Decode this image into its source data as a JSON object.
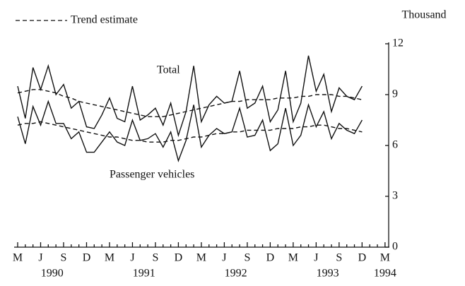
{
  "chart_data": {
    "type": "line",
    "unit_label": "Thousand",
    "categories": [
      "M",
      null,
      null,
      "J",
      null,
      null,
      "S",
      null,
      null,
      "D",
      null,
      null,
      "M",
      null,
      null,
      "J",
      null,
      null,
      "S",
      null,
      null,
      "D",
      null,
      null,
      "M",
      null,
      null,
      "J",
      null,
      null,
      "S",
      null,
      null,
      "D",
      null,
      null,
      "M",
      null,
      null,
      "J",
      null,
      null,
      "S",
      null,
      null,
      "D",
      null,
      null,
      "M"
    ],
    "years": [
      "1990",
      "1991",
      "1992",
      "1993",
      "1994"
    ],
    "series": [
      {
        "name": "Total",
        "color": "#111111",
        "dashed": false,
        "values": [
          9.5,
          7.6,
          10.6,
          9.3,
          10.7,
          9.0,
          9.6,
          8.2,
          8.6,
          7.1,
          7.0,
          7.8,
          8.8,
          7.6,
          7.4,
          9.5,
          7.5,
          7.8,
          8.2,
          7.2,
          8.5,
          6.6,
          8.0,
          10.7,
          7.4,
          8.4,
          8.9,
          8.5,
          8.6,
          10.4,
          8.2,
          8.5,
          9.5,
          7.4,
          8.1,
          10.4,
          7.4,
          8.5,
          11.3,
          9.2,
          10.2,
          8.0,
          9.4,
          8.9,
          8.7,
          9.5,
          null,
          null,
          null
        ]
      },
      {
        "name": "Passenger vehicles",
        "color": "#111111",
        "dashed": false,
        "values": [
          7.7,
          6.1,
          8.3,
          7.2,
          8.6,
          7.3,
          7.3,
          6.4,
          6.8,
          5.6,
          5.6,
          6.2,
          6.8,
          6.2,
          6.0,
          7.5,
          6.3,
          6.4,
          6.7,
          5.9,
          6.8,
          5.1,
          6.3,
          8.4,
          5.9,
          6.6,
          7.0,
          6.7,
          6.8,
          8.2,
          6.5,
          6.6,
          7.5,
          5.7,
          6.1,
          8.2,
          6.0,
          6.6,
          8.4,
          7.1,
          8.0,
          6.4,
          7.3,
          6.9,
          6.7,
          7.5,
          null,
          null,
          null
        ]
      },
      {
        "name": "Trend estimate",
        "color": "#111111",
        "dashed": true,
        "values": [
          9.1,
          9.2,
          9.3,
          9.3,
          9.2,
          9.1,
          8.9,
          8.8,
          8.6,
          8.5,
          8.4,
          8.3,
          8.2,
          8.1,
          8.0,
          7.9,
          7.8,
          7.7,
          7.7,
          7.7,
          7.8,
          7.9,
          8.0,
          8.1,
          8.2,
          8.3,
          8.4,
          8.5,
          8.6,
          8.6,
          8.7,
          8.7,
          8.7,
          8.7,
          8.8,
          8.8,
          8.8,
          8.9,
          8.9,
          9.0,
          9.0,
          9.0,
          8.9,
          8.9,
          8.8,
          8.7,
          null,
          null,
          null
        ]
      },
      {
        "color": "#111111",
        "dashed": true,
        "values": [
          7.2,
          7.3,
          7.3,
          7.4,
          7.3,
          7.2,
          7.1,
          7.0,
          6.9,
          6.8,
          6.7,
          6.6,
          6.5,
          6.5,
          6.4,
          6.3,
          6.3,
          6.2,
          6.2,
          6.2,
          6.3,
          6.3,
          6.4,
          6.5,
          6.5,
          6.6,
          6.7,
          6.7,
          6.8,
          6.8,
          6.9,
          6.9,
          6.9,
          6.9,
          7.0,
          7.0,
          7.0,
          7.1,
          7.1,
          7.2,
          7.2,
          7.1,
          7.0,
          7.0,
          6.9,
          6.8,
          null,
          null,
          null
        ]
      }
    ],
    "ylim": [
      0,
      12
    ],
    "yticks": [
      0,
      3,
      6,
      9,
      12
    ],
    "grid": false,
    "legend": "top-left"
  }
}
